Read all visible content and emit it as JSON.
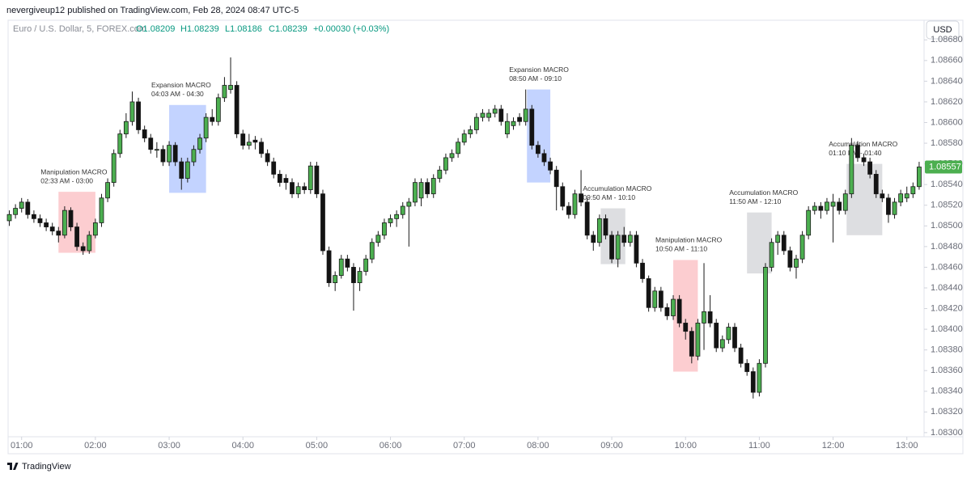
{
  "header": {
    "publisher": "nevergiveup12 published on TradingView.com, Feb 28, 2024 08:47 UTC-5",
    "symbol": "Euro / U.S. Dollar, 5, FOREX.com",
    "open": "O1.08209",
    "high": "H1.08239",
    "low": "L1.08186",
    "close": "C1.08239",
    "change": "+0.00030 (+0.03%)",
    "currency": "USD"
  },
  "footer": {
    "brand": "TradingView"
  },
  "chart_data": {
    "type": "candlestick",
    "up_color": "#4caf50",
    "down_color": "#131313",
    "outline": "#1a1a1a",
    "grid": false,
    "xlim": [
      "00:49",
      "13:14"
    ],
    "xticks": [
      "01:00",
      "02:00",
      "03:00",
      "04:00",
      "05:00",
      "06:00",
      "07:00",
      "08:00",
      "09:00",
      "10:00",
      "11:00",
      "12:00",
      "13:00"
    ],
    "ylim": [
      1.08296,
      1.08699
    ],
    "yticks": [
      {
        "value": 1.083,
        "label": "1.08300"
      },
      {
        "value": 1.0832,
        "label": "1.08320"
      },
      {
        "value": 1.0834,
        "label": "1.08340"
      },
      {
        "value": 1.0836,
        "label": "1.08360"
      },
      {
        "value": 1.0838,
        "label": "1.08380"
      },
      {
        "value": 1.084,
        "label": "1.08400"
      },
      {
        "value": 1.0842,
        "label": "1.08420"
      },
      {
        "value": 1.0844,
        "label": "1.08440"
      },
      {
        "value": 1.0846,
        "label": "1.08460"
      },
      {
        "value": 1.0848,
        "label": "1.08480"
      },
      {
        "value": 1.085,
        "label": "1.08500"
      },
      {
        "value": 1.0852,
        "label": "1.08520"
      },
      {
        "value": 1.0854,
        "label": "1.08540"
      },
      {
        "value": 1.0856,
        "label": "1.08560"
      },
      {
        "value": 1.0858,
        "label": "1.08580"
      },
      {
        "value": 1.086,
        "label": "1.08600"
      },
      {
        "value": 1.0862,
        "label": "1.08620"
      },
      {
        "value": 1.0864,
        "label": "1.08640"
      },
      {
        "value": 1.0866,
        "label": "1.08660"
      },
      {
        "value": 1.0868,
        "label": "1.08680"
      }
    ],
    "x": [
      "00:50",
      "00:55",
      "01:00",
      "01:05",
      "01:10",
      "01:15",
      "01:20",
      "01:25",
      "01:30",
      "01:35",
      "01:40",
      "01:45",
      "01:50",
      "01:55",
      "02:00",
      "02:05",
      "02:10",
      "02:15",
      "02:20",
      "02:25",
      "02:30",
      "02:35",
      "02:40",
      "02:45",
      "02:50",
      "02:55",
      "03:00",
      "03:05",
      "03:10",
      "03:15",
      "03:20",
      "03:25",
      "03:30",
      "03:35",
      "03:40",
      "03:45",
      "03:50",
      "03:55",
      "04:00",
      "04:05",
      "04:10",
      "04:15",
      "04:20",
      "04:25",
      "04:30",
      "04:35",
      "04:40",
      "04:45",
      "04:50",
      "04:55",
      "05:00",
      "05:05",
      "05:10",
      "05:15",
      "05:20",
      "05:25",
      "05:30",
      "05:35",
      "05:40",
      "05:45",
      "05:50",
      "05:55",
      "06:00",
      "06:05",
      "06:10",
      "06:15",
      "06:20",
      "06:25",
      "06:30",
      "06:35",
      "06:40",
      "06:45",
      "06:50",
      "06:55",
      "07:00",
      "07:05",
      "07:10",
      "07:15",
      "07:20",
      "07:25",
      "07:30",
      "07:35",
      "07:40",
      "07:45",
      "07:50",
      "07:55",
      "08:00",
      "08:05",
      "08:10",
      "08:15",
      "08:20",
      "08:25",
      "08:30",
      "08:35",
      "08:40",
      "08:45",
      "08:50",
      "08:55",
      "09:00",
      "09:05",
      "09:10",
      "09:15",
      "09:20",
      "09:25",
      "09:30",
      "09:35",
      "09:40",
      "09:45",
      "09:50",
      "09:55",
      "10:00",
      "10:05",
      "10:10",
      "10:15",
      "10:20",
      "10:25",
      "10:30",
      "10:35",
      "10:40",
      "10:45",
      "10:50",
      "10:55",
      "11:00",
      "11:05",
      "11:10",
      "11:15",
      "11:20",
      "11:25",
      "11:30",
      "11:35",
      "11:40",
      "11:45",
      "11:50",
      "11:55",
      "12:00",
      "12:05",
      "12:10",
      "12:15",
      "12:20",
      "12:25",
      "12:30",
      "12:35",
      "12:40",
      "12:45",
      "12:50",
      "12:55",
      "13:00",
      "13:05",
      "13:10"
    ],
    "ohlc": [
      [
        1.08505,
        1.08515,
        1.085,
        1.08511
      ],
      [
        1.08511,
        1.08521,
        1.08507,
        1.08517
      ],
      [
        1.08517,
        1.08527,
        1.08513,
        1.08523
      ],
      [
        1.08523,
        1.08526,
        1.08507,
        1.08511
      ],
      [
        1.08511,
        1.08515,
        1.08503,
        1.08507
      ],
      [
        1.08507,
        1.08511,
        1.08499,
        1.08503
      ],
      [
        1.08503,
        1.08507,
        1.08495,
        1.08499
      ],
      [
        1.08499,
        1.08503,
        1.08491,
        1.08495
      ],
      [
        1.08495,
        1.08499,
        1.08484,
        1.08491
      ],
      [
        1.08491,
        1.08519,
        1.08488,
        1.08515
      ],
      [
        1.08515,
        1.08518,
        1.08495,
        1.08499
      ],
      [
        1.08499,
        1.08503,
        1.08476,
        1.0848
      ],
      [
        1.0848,
        1.08484,
        1.08472,
        1.08476
      ],
      [
        1.08476,
        1.08495,
        1.08473,
        1.08491
      ],
      [
        1.08491,
        1.08507,
        1.08488,
        1.08503
      ],
      [
        1.08503,
        1.08531,
        1.08499,
        1.08527
      ],
      [
        1.08527,
        1.08546,
        1.08523,
        1.08542
      ],
      [
        1.08542,
        1.08574,
        1.08538,
        1.0857
      ],
      [
        1.0857,
        1.08593,
        1.08566,
        1.08589
      ],
      [
        1.08589,
        1.08609,
        1.08585,
        1.08601
      ],
      [
        1.08601,
        1.0863,
        1.08597,
        1.0862
      ],
      [
        1.0862,
        1.08624,
        1.08589,
        1.08593
      ],
      [
        1.08593,
        1.08597,
        1.08581,
        1.08585
      ],
      [
        1.08585,
        1.08589,
        1.0857,
        1.08574
      ],
      [
        1.08574,
        1.08581,
        1.08566,
        1.08574
      ],
      [
        1.08574,
        1.08578,
        1.08558,
        1.08562
      ],
      [
        1.08562,
        1.08582,
        1.08558,
        1.08578
      ],
      [
        1.08578,
        1.08581,
        1.08558,
        1.08562
      ],
      [
        1.08562,
        1.08566,
        1.08535,
        1.08546
      ],
      [
        1.08546,
        1.08566,
        1.08542,
        1.08562
      ],
      [
        1.08562,
        1.08578,
        1.08558,
        1.08574
      ],
      [
        1.08574,
        1.08589,
        1.0857,
        1.08585
      ],
      [
        1.08585,
        1.08609,
        1.08581,
        1.08605
      ],
      [
        1.08605,
        1.08613,
        1.08597,
        1.08601
      ],
      [
        1.08601,
        1.08628,
        1.08597,
        1.08624
      ],
      [
        1.08624,
        1.08644,
        1.0862,
        1.08636
      ],
      [
        1.08632,
        1.08663,
        1.08628,
        1.08636
      ],
      [
        1.08636,
        1.0864,
        1.08585,
        1.08589
      ],
      [
        1.08589,
        1.08593,
        1.08574,
        1.08578
      ],
      [
        1.08578,
        1.08589,
        1.08574,
        1.08581
      ],
      [
        1.08583,
        1.08587,
        1.08574,
        1.08581
      ],
      [
        1.08581,
        1.08585,
        1.08566,
        1.0857
      ],
      [
        1.0857,
        1.08574,
        1.08558,
        1.08562
      ],
      [
        1.08562,
        1.08566,
        1.08546,
        1.0855
      ],
      [
        1.0855,
        1.08554,
        1.08538,
        1.08542
      ],
      [
        1.08546,
        1.0855,
        1.08535,
        1.08542
      ],
      [
        1.08542,
        1.08546,
        1.08527,
        1.08531
      ],
      [
        1.08531,
        1.08542,
        1.08527,
        1.08538
      ],
      [
        1.08538,
        1.08542,
        1.08531,
        1.08535
      ],
      [
        1.08535,
        1.08562,
        1.08531,
        1.08558
      ],
      [
        1.08558,
        1.08562,
        1.08527,
        1.08531
      ],
      [
        1.08531,
        1.08535,
        1.08472,
        1.08476
      ],
      [
        1.08476,
        1.0848,
        1.08441,
        1.08445
      ],
      [
        1.08445,
        1.08456,
        1.08437,
        1.08452
      ],
      [
        1.08452,
        1.08472,
        1.08449,
        1.08468
      ],
      [
        1.08468,
        1.08472,
        1.08456,
        1.0846
      ],
      [
        1.0846,
        1.08464,
        1.08418,
        1.08445
      ],
      [
        1.08445,
        1.0846,
        1.08437,
        1.08456
      ],
      [
        1.08456,
        1.08472,
        1.08452,
        1.08468
      ],
      [
        1.08468,
        1.08488,
        1.08464,
        1.08484
      ],
      [
        1.08484,
        1.08495,
        1.0848,
        1.08491
      ],
      [
        1.08491,
        1.08507,
        1.08487,
        1.08503
      ],
      [
        1.08503,
        1.08511,
        1.08499,
        1.08507
      ],
      [
        1.08507,
        1.08515,
        1.08499,
        1.08511
      ],
      [
        1.08511,
        1.08523,
        1.08507,
        1.08519
      ],
      [
        1.08519,
        1.08527,
        1.0848,
        1.08523
      ],
      [
        1.08523,
        1.08546,
        1.08519,
        1.08542
      ],
      [
        1.08527,
        1.08546,
        1.08519,
        1.08542
      ],
      [
        1.08542,
        1.08546,
        1.08527,
        1.08531
      ],
      [
        1.08531,
        1.0855,
        1.08527,
        1.08546
      ],
      [
        1.08546,
        1.08558,
        1.08542,
        1.08554
      ],
      [
        1.08554,
        1.0857,
        1.0855,
        1.08566
      ],
      [
        1.08566,
        1.08574,
        1.08562,
        1.0857
      ],
      [
        1.0857,
        1.08585,
        1.08566,
        1.08581
      ],
      [
        1.08581,
        1.08593,
        1.08578,
        1.08589
      ],
      [
        1.08589,
        1.08597,
        1.08585,
        1.08593
      ],
      [
        1.08593,
        1.08609,
        1.08589,
        1.08605
      ],
      [
        1.08605,
        1.08613,
        1.08601,
        1.08609
      ],
      [
        1.08605,
        1.08613,
        1.08601,
        1.08609
      ],
      [
        1.08609,
        1.08617,
        1.08605,
        1.08613
      ],
      [
        1.08613,
        1.08617,
        1.08597,
        1.08601
      ],
      [
        1.08589,
        1.08609,
        1.08585,
        1.08601
      ],
      [
        1.08597,
        1.08605,
        1.08593,
        1.08601
      ],
      [
        1.08605,
        1.08609,
        1.08597,
        1.08601
      ],
      [
        1.08601,
        1.08632,
        1.08597,
        1.08613
      ],
      [
        1.08613,
        1.08617,
        1.08574,
        1.08578
      ],
      [
        1.08578,
        1.08582,
        1.08566,
        1.0857
      ],
      [
        1.0857,
        1.08574,
        1.08558,
        1.08562
      ],
      [
        1.08562,
        1.08566,
        1.0855,
        1.08554
      ],
      [
        1.08554,
        1.08558,
        1.08515,
        1.08538
      ],
      [
        1.08538,
        1.08542,
        1.08515,
        1.08519
      ],
      [
        1.08519,
        1.08523,
        1.08507,
        1.08511
      ],
      [
        1.08511,
        1.08535,
        1.08507,
        1.08531
      ],
      [
        1.08531,
        1.08554,
        1.08519,
        1.08523
      ],
      [
        1.08523,
        1.08527,
        1.08487,
        1.08491
      ],
      [
        1.08491,
        1.08495,
        1.08476,
        1.08484
      ],
      [
        1.08484,
        1.08511,
        1.0848,
        1.08507
      ],
      [
        1.08507,
        1.08511,
        1.08487,
        1.08491
      ],
      [
        1.08491,
        1.08495,
        1.08464,
        1.08468
      ],
      [
        1.08468,
        1.08495,
        1.0846,
        1.08491
      ],
      [
        1.08491,
        1.08499,
        1.0848,
        1.08484
      ],
      [
        1.08484,
        1.08495,
        1.0848,
        1.08491
      ],
      [
        1.08491,
        1.08495,
        1.0846,
        1.08464
      ],
      [
        1.08464,
        1.08468,
        1.08445,
        1.08449
      ],
      [
        1.08449,
        1.08452,
        1.08417,
        1.08421
      ],
      [
        1.08421,
        1.08441,
        1.08417,
        1.08437
      ],
      [
        1.08437,
        1.08441,
        1.08417,
        1.08421
      ],
      [
        1.08421,
        1.08425,
        1.08409,
        1.08413
      ],
      [
        1.08413,
        1.08433,
        1.08409,
        1.08429
      ],
      [
        1.08429,
        1.08433,
        1.08402,
        1.08406
      ],
      [
        1.08406,
        1.0841,
        1.0839,
        1.08398
      ],
      [
        1.08398,
        1.08402,
        1.08367,
        1.08374
      ],
      [
        1.08374,
        1.0841,
        1.0837,
        1.08406
      ],
      [
        1.08406,
        1.08464,
        1.0838,
        1.08417
      ],
      [
        1.08417,
        1.08433,
        1.08402,
        1.08406
      ],
      [
        1.08406,
        1.0841,
        1.08378,
        1.08382
      ],
      [
        1.08382,
        1.08394,
        1.08378,
        1.0839
      ],
      [
        1.0839,
        1.08406,
        1.08386,
        1.08402
      ],
      [
        1.08402,
        1.08406,
        1.08378,
        1.08382
      ],
      [
        1.08382,
        1.08386,
        1.08363,
        1.08367
      ],
      [
        1.08367,
        1.08371,
        1.08355,
        1.08359
      ],
      [
        1.08359,
        1.08363,
        1.08333,
        1.08339
      ],
      [
        1.08339,
        1.08371,
        1.08335,
        1.08367
      ],
      [
        1.08367,
        1.08464,
        1.08363,
        1.0846
      ],
      [
        1.0846,
        1.08488,
        1.08456,
        1.08484
      ],
      [
        1.08484,
        1.08495,
        1.08472,
        1.08491
      ],
      [
        1.08491,
        1.08495,
        1.08472,
        1.08476
      ],
      [
        1.08476,
        1.0848,
        1.08456,
        1.0846
      ],
      [
        1.0846,
        1.08472,
        1.08449,
        1.08468
      ],
      [
        1.08468,
        1.08495,
        1.08464,
        1.08491
      ],
      [
        1.08491,
        1.08519,
        1.08487,
        1.08515
      ],
      [
        1.08515,
        1.08523,
        1.08511,
        1.08519
      ],
      [
        1.08519,
        1.08523,
        1.08507,
        1.08515
      ],
      [
        1.08515,
        1.08527,
        1.08511,
        1.08523
      ],
      [
        1.08519,
        1.08531,
        1.08484,
        1.08523
      ],
      [
        1.08523,
        1.08527,
        1.08511,
        1.08515
      ],
      [
        1.08515,
        1.08535,
        1.08511,
        1.08531
      ],
      [
        1.08531,
        1.08585,
        1.08527,
        1.08578
      ],
      [
        1.08578,
        1.08582,
        1.08562,
        1.08566
      ],
      [
        1.08566,
        1.0857,
        1.08558,
        1.08562
      ],
      [
        1.08562,
        1.08566,
        1.08546,
        1.0855
      ],
      [
        1.0855,
        1.08554,
        1.08527,
        1.08531
      ],
      [
        1.08531,
        1.08535,
        1.08523,
        1.08527
      ],
      [
        1.08527,
        1.08531,
        1.08503,
        1.08511
      ],
      [
        1.08511,
        1.08527,
        1.08507,
        1.08523
      ],
      [
        1.08523,
        1.08535,
        1.08519,
        1.08531
      ],
      [
        1.08527,
        1.08538,
        1.08523,
        1.08531
      ],
      [
        1.08531,
        1.08542,
        1.08527,
        1.08538
      ],
      [
        1.08538,
        1.08562,
        1.08535,
        1.08557
      ]
    ],
    "annotations": [
      {
        "title": "Manipulation MACRO",
        "subtitle": "02:33 AM - 03:00",
        "x": [
          "01:30",
          "02:00"
        ],
        "y": [
          1.08474,
          1.08533
        ],
        "color": "rgba(242,54,69,0.25)"
      },
      {
        "title": "Expansion MACRO",
        "subtitle": "04:03 AM - 04:30",
        "x": [
          "03:00",
          "03:30"
        ],
        "y": [
          1.08532,
          1.08617
        ],
        "color": "rgba(41,98,255,0.28)"
      },
      {
        "title": "Expansion MACRO",
        "subtitle": "08:50 AM - 09:10",
        "x": [
          "07:51",
          "08:10"
        ],
        "y": [
          1.08542,
          1.08632
        ],
        "color": "rgba(41,98,255,0.28)"
      },
      {
        "title": "Accumulation MACRO",
        "subtitle": "09:50 AM - 10:10",
        "x": [
          "08:51",
          "09:11"
        ],
        "y": [
          1.08463,
          1.08517
        ],
        "color": "rgba(120,123,134,0.25)"
      },
      {
        "title": "Manipulation MACRO",
        "subtitle": "10:50 AM - 11:10",
        "x": [
          "09:50",
          "10:10"
        ],
        "y": [
          1.08359,
          1.08467
        ],
        "color": "rgba(242,54,69,0.25)"
      },
      {
        "title": "Accumulation MACRO",
        "subtitle": "11:50 AM - 12:10",
        "x": [
          "10:50",
          "11:10"
        ],
        "y": [
          1.08454,
          1.08513
        ],
        "color": "rgba(120,123,134,0.25)"
      },
      {
        "title": "Accumulation MACRO",
        "subtitle": "01:10 PM - 01:40",
        "x": [
          "12:11",
          "12:40"
        ],
        "y": [
          1.08491,
          1.0856
        ],
        "color": "rgba(120,123,134,0.25)"
      }
    ]
  }
}
